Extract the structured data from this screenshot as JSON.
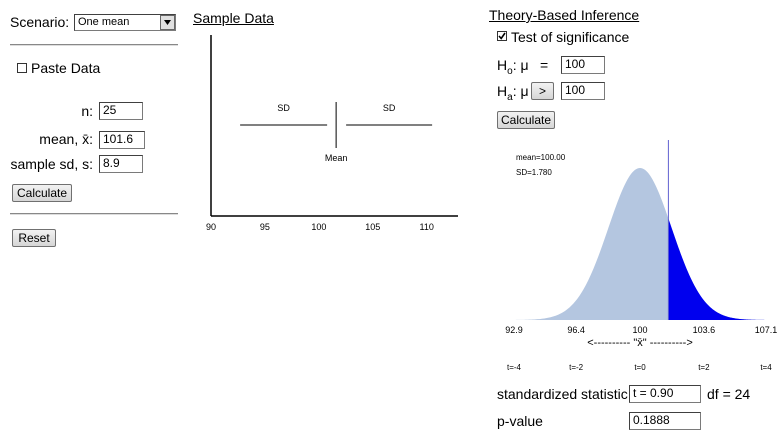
{
  "scenario": {
    "label": "Scenario:",
    "value": "One mean"
  },
  "paste_data": {
    "label": "Paste Data",
    "checked": false
  },
  "fields": [
    {
      "label": "n:",
      "value": 25
    },
    {
      "label": "mean, x̄:",
      "value": 101.6
    },
    {
      "label": "sample sd, s:",
      "value": 8.9
    }
  ],
  "calculate_button": "Calculate",
  "reset_button": "Reset",
  "sample_data": {
    "title": "Sample Data",
    "xlim": [
      90,
      112.9
    ],
    "xticks": [
      90,
      95,
      100,
      105,
      110
    ],
    "sd_label": "SD",
    "mean_label": "Mean"
  },
  "theory": {
    "title": "Theory-Based Inference",
    "test_label": "Test of significance",
    "test_checked": true,
    "h0": {
      "symbol": "H",
      "sub": "o",
      "rest": ": μ",
      "relation": "=",
      "value": 100
    },
    "ha": {
      "symbol": "H",
      "sub": "a",
      "rest": ": μ",
      "relation": ">",
      "value": 100
    },
    "calculate_button": "Calculate",
    "distribution": {
      "mean": 100,
      "sd": 1.78,
      "mean_text": "mean=100.00",
      "sd_text": "SD=1.780",
      "xlim": [
        92.9,
        107.1
      ],
      "xticks": [
        92.9,
        96.4,
        100,
        103.6,
        107.1
      ],
      "axis_label": "<---------- \"x̄\" ---------->",
      "t_labels": [
        "t=-4",
        "t=-2",
        "t=0",
        "t=2",
        "t=4"
      ]
    },
    "statistic_label": "standardized statistic",
    "statistic_value": "t = 0.90",
    "df_text": "df = 24",
    "pvalue_label": "p-value",
    "pvalue": 0.1888
  }
}
